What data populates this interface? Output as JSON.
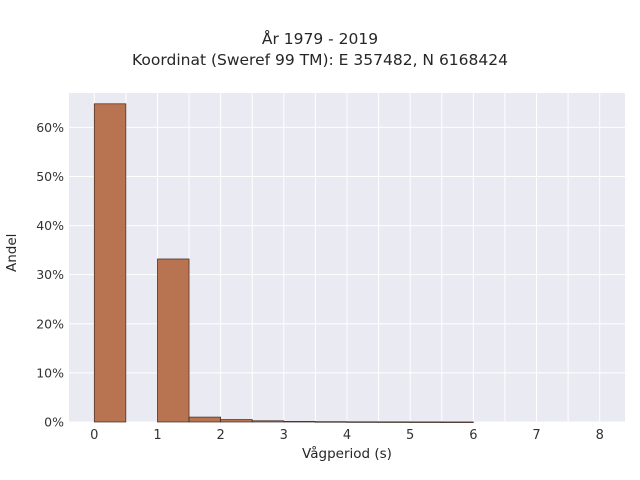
{
  "chart_data": {
    "type": "bar",
    "title": "År 1979 - 2019",
    "subtitle": "Koordinat (Sweref 99 TM): E 357482, N 6168424",
    "xlabel": "Vågperiod (s)",
    "ylabel": "Andel",
    "xlim": [
      -0.4,
      8.4
    ],
    "ylim": [
      0,
      67
    ],
    "x_ticks": [
      0,
      1,
      2,
      3,
      4,
      5,
      6,
      7,
      8
    ],
    "x_tick_labels": [
      "0",
      "1",
      "2",
      "3",
      "4",
      "5",
      "6",
      "7",
      "8"
    ],
    "y_ticks": [
      0,
      10,
      20,
      30,
      40,
      50,
      60
    ],
    "y_tick_labels": [
      "0%",
      "10%",
      "20%",
      "30%",
      "40%",
      "50%",
      "60%"
    ],
    "bins": [
      {
        "start": 0.0,
        "end": 0.5,
        "value": 64.8
      },
      {
        "start": 0.5,
        "end": 1.0,
        "value": 0.0
      },
      {
        "start": 1.0,
        "end": 1.5,
        "value": 33.2
      },
      {
        "start": 1.5,
        "end": 2.0,
        "value": 1.0
      },
      {
        "start": 2.0,
        "end": 2.5,
        "value": 0.5
      },
      {
        "start": 2.5,
        "end": 3.0,
        "value": 0.25
      },
      {
        "start": 3.0,
        "end": 3.5,
        "value": 0.12
      },
      {
        "start": 3.5,
        "end": 4.0,
        "value": 0.07
      },
      {
        "start": 4.0,
        "end": 4.5,
        "value": 0.04
      },
      {
        "start": 4.5,
        "end": 5.0,
        "value": 0.03
      },
      {
        "start": 5.0,
        "end": 5.5,
        "value": 0.02
      },
      {
        "start": 5.5,
        "end": 6.0,
        "value": 0.01
      }
    ],
    "grid": true,
    "colors": {
      "plot_background": "#eaeaf2",
      "grid": "#ffffff",
      "bar_fill": "#b87350",
      "bar_edge": "#3f2a20"
    }
  }
}
